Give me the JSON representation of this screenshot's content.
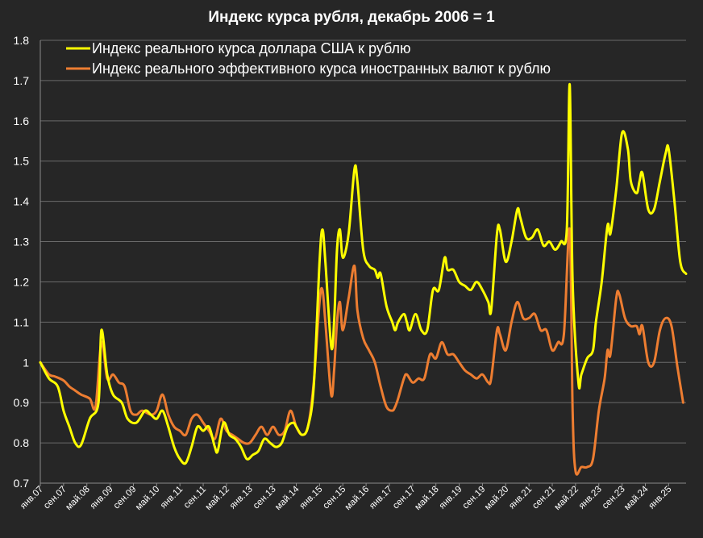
{
  "chart_data": {
    "type": "line",
    "title": "Индекс курса рубля, декабрь 2006 = 1",
    "ylim": [
      0.7,
      1.8
    ],
    "yticks": [
      "0.7",
      "0.8",
      "0.9",
      "1",
      "1.1",
      "1.2",
      "1.3",
      "1.4",
      "1.5",
      "1.6",
      "1.7",
      "1.8"
    ],
    "grid": true,
    "legend_position": "top-left",
    "colors": {
      "background": "#262626",
      "usd": "#ffff00",
      "eff": "#ed7d31",
      "grid": "#6a6a6a",
      "text": "#ffffff"
    },
    "x_ticks": [
      "янв.07",
      "сен.07",
      "май.08",
      "янв.09",
      "сен.09",
      "май.10",
      "янв.11",
      "сен.11",
      "май.12",
      "янв.13",
      "сен.13",
      "май.14",
      "янв.15",
      "сен.15",
      "май.16",
      "янв.17",
      "сен.17",
      "май.18",
      "янв.19",
      "сен.19",
      "май.20",
      "янв.21",
      "сен.21",
      "май.22",
      "янв.23",
      "сен.23",
      "май.24",
      "янв.25"
    ],
    "x_tick_month_index": [
      0,
      8,
      16,
      24,
      32,
      40,
      48,
      56,
      64,
      72,
      80,
      88,
      96,
      104,
      112,
      120,
      128,
      136,
      144,
      152,
      160,
      168,
      176,
      184,
      192,
      200,
      208,
      216
    ],
    "x_start_label": "янв.07",
    "n_months": 223,
    "series": [
      {
        "name": "Индекс реального курса доллара США к рублю",
        "color": "#ffff00",
        "points": [
          [
            0,
            1.0
          ],
          [
            3,
            0.96
          ],
          [
            6,
            0.94
          ],
          [
            8,
            0.88
          ],
          [
            10,
            0.84
          ],
          [
            12,
            0.8
          ],
          [
            14,
            0.795
          ],
          [
            17,
            0.86
          ],
          [
            20,
            0.9
          ],
          [
            21,
            1.08
          ],
          [
            23,
            0.97
          ],
          [
            25,
            0.92
          ],
          [
            28,
            0.9
          ],
          [
            30,
            0.86
          ],
          [
            33,
            0.85
          ],
          [
            36,
            0.88
          ],
          [
            38,
            0.87
          ],
          [
            40,
            0.86
          ],
          [
            42,
            0.88
          ],
          [
            44,
            0.84
          ],
          [
            46,
            0.79
          ],
          [
            48,
            0.76
          ],
          [
            50,
            0.75
          ],
          [
            52,
            0.79
          ],
          [
            54,
            0.84
          ],
          [
            56,
            0.83
          ],
          [
            58,
            0.84
          ],
          [
            60,
            0.79
          ],
          [
            61,
            0.78
          ],
          [
            63,
            0.85
          ],
          [
            65,
            0.82
          ],
          [
            67,
            0.81
          ],
          [
            69,
            0.79
          ],
          [
            71,
            0.76
          ],
          [
            73,
            0.77
          ],
          [
            75,
            0.78
          ],
          [
            77,
            0.81
          ],
          [
            79,
            0.8
          ],
          [
            81,
            0.79
          ],
          [
            83,
            0.8
          ],
          [
            85,
            0.84
          ],
          [
            87,
            0.85
          ],
          [
            88,
            0.84
          ],
          [
            90,
            0.82
          ],
          [
            92,
            0.84
          ],
          [
            94,
            0.94
          ],
          [
            96,
            1.25
          ],
          [
            97,
            1.33
          ],
          [
            98,
            1.25
          ],
          [
            100,
            1.04
          ],
          [
            101,
            1.1
          ],
          [
            102,
            1.28
          ],
          [
            103,
            1.33
          ],
          [
            104,
            1.26
          ],
          [
            106,
            1.32
          ],
          [
            108,
            1.48
          ],
          [
            109,
            1.45
          ],
          [
            111,
            1.28
          ],
          [
            113,
            1.24
          ],
          [
            115,
            1.23
          ],
          [
            116,
            1.21
          ],
          [
            117,
            1.22
          ],
          [
            119,
            1.14
          ],
          [
            121,
            1.1
          ],
          [
            122,
            1.08
          ],
          [
            123,
            1.1
          ],
          [
            125,
            1.12
          ],
          [
            126,
            1.1
          ],
          [
            127,
            1.08
          ],
          [
            129,
            1.12
          ],
          [
            131,
            1.08
          ],
          [
            133,
            1.08
          ],
          [
            135,
            1.18
          ],
          [
            137,
            1.18
          ],
          [
            139,
            1.26
          ],
          [
            140,
            1.23
          ],
          [
            142,
            1.23
          ],
          [
            144,
            1.2
          ],
          [
            146,
            1.19
          ],
          [
            148,
            1.18
          ],
          [
            150,
            1.2
          ],
          [
            152,
            1.18
          ],
          [
            154,
            1.15
          ],
          [
            155,
            1.13
          ],
          [
            157,
            1.32
          ],
          [
            158,
            1.33
          ],
          [
            160,
            1.25
          ],
          [
            162,
            1.3
          ],
          [
            164,
            1.38
          ],
          [
            165,
            1.36
          ],
          [
            167,
            1.31
          ],
          [
            169,
            1.31
          ],
          [
            171,
            1.33
          ],
          [
            173,
            1.29
          ],
          [
            175,
            1.3
          ],
          [
            177,
            1.28
          ],
          [
            179,
            1.3
          ],
          [
            181,
            1.33
          ],
          [
            182,
            1.69
          ],
          [
            183,
            1.2
          ],
          [
            185,
            0.95
          ],
          [
            186,
            0.97
          ],
          [
            188,
            1.01
          ],
          [
            190,
            1.03
          ],
          [
            191,
            1.1
          ],
          [
            193,
            1.2
          ],
          [
            195,
            1.34
          ],
          [
            196,
            1.32
          ],
          [
            198,
            1.43
          ],
          [
            200,
            1.57
          ],
          [
            202,
            1.53
          ],
          [
            203,
            1.45
          ],
          [
            205,
            1.42
          ],
          [
            206,
            1.45
          ],
          [
            207,
            1.47
          ],
          [
            209,
            1.38
          ],
          [
            211,
            1.38
          ],
          [
            213,
            1.45
          ],
          [
            215,
            1.52
          ],
          [
            216,
            1.53
          ],
          [
            218,
            1.4
          ],
          [
            220,
            1.25
          ],
          [
            222,
            1.22
          ]
        ]
      },
      {
        "name": "Индекс реального эффективного курса иностранных валют к рублю",
        "color": "#ed7d31",
        "points": [
          [
            0,
            1.0
          ],
          [
            3,
            0.97
          ],
          [
            5,
            0.965
          ],
          [
            8,
            0.955
          ],
          [
            10,
            0.94
          ],
          [
            12,
            0.93
          ],
          [
            14,
            0.92
          ],
          [
            17,
            0.91
          ],
          [
            19,
            0.89
          ],
          [
            21,
            1.05
          ],
          [
            23,
            0.96
          ],
          [
            25,
            0.97
          ],
          [
            27,
            0.95
          ],
          [
            29,
            0.94
          ],
          [
            31,
            0.88
          ],
          [
            33,
            0.87
          ],
          [
            35,
            0.88
          ],
          [
            38,
            0.87
          ],
          [
            40,
            0.88
          ],
          [
            42,
            0.92
          ],
          [
            44,
            0.87
          ],
          [
            46,
            0.84
          ],
          [
            48,
            0.83
          ],
          [
            50,
            0.82
          ],
          [
            52,
            0.86
          ],
          [
            54,
            0.87
          ],
          [
            56,
            0.85
          ],
          [
            58,
            0.83
          ],
          [
            60,
            0.81
          ],
          [
            62,
            0.86
          ],
          [
            64,
            0.83
          ],
          [
            66,
            0.82
          ],
          [
            68,
            0.81
          ],
          [
            70,
            0.8
          ],
          [
            72,
            0.8
          ],
          [
            74,
            0.82
          ],
          [
            76,
            0.84
          ],
          [
            78,
            0.82
          ],
          [
            80,
            0.84
          ],
          [
            82,
            0.82
          ],
          [
            84,
            0.83
          ],
          [
            86,
            0.88
          ],
          [
            88,
            0.84
          ],
          [
            90,
            0.82
          ],
          [
            92,
            0.84
          ],
          [
            94,
            0.95
          ],
          [
            96,
            1.15
          ],
          [
            97,
            1.18
          ],
          [
            98,
            1.1
          ],
          [
            100,
            0.92
          ],
          [
            101,
            0.98
          ],
          [
            102,
            1.1
          ],
          [
            103,
            1.15
          ],
          [
            104,
            1.08
          ],
          [
            106,
            1.16
          ],
          [
            108,
            1.24
          ],
          [
            109,
            1.13
          ],
          [
            111,
            1.06
          ],
          [
            113,
            1.03
          ],
          [
            115,
            1.0
          ],
          [
            117,
            0.94
          ],
          [
            119,
            0.89
          ],
          [
            121,
            0.88
          ],
          [
            122,
            0.89
          ],
          [
            123,
            0.91
          ],
          [
            125,
            0.96
          ],
          [
            126,
            0.97
          ],
          [
            128,
            0.95
          ],
          [
            130,
            0.96
          ],
          [
            132,
            0.96
          ],
          [
            134,
            1.02
          ],
          [
            136,
            1.01
          ],
          [
            138,
            1.05
          ],
          [
            140,
            1.02
          ],
          [
            142,
            1.02
          ],
          [
            144,
            1.0
          ],
          [
            146,
            0.98
          ],
          [
            148,
            0.97
          ],
          [
            150,
            0.96
          ],
          [
            152,
            0.97
          ],
          [
            154,
            0.95
          ],
          [
            155,
            0.96
          ],
          [
            157,
            1.08
          ],
          [
            158,
            1.07
          ],
          [
            160,
            1.03
          ],
          [
            162,
            1.1
          ],
          [
            164,
            1.15
          ],
          [
            166,
            1.11
          ],
          [
            168,
            1.11
          ],
          [
            170,
            1.12
          ],
          [
            172,
            1.08
          ],
          [
            174,
            1.08
          ],
          [
            176,
            1.03
          ],
          [
            178,
            1.05
          ],
          [
            180,
            1.07
          ],
          [
            182,
            1.33
          ],
          [
            183,
            0.88
          ],
          [
            184,
            0.73
          ],
          [
            186,
            0.74
          ],
          [
            188,
            0.74
          ],
          [
            190,
            0.76
          ],
          [
            192,
            0.88
          ],
          [
            194,
            0.96
          ],
          [
            195,
            1.03
          ],
          [
            196,
            1.02
          ],
          [
            198,
            1.16
          ],
          [
            199,
            1.17
          ],
          [
            201,
            1.11
          ],
          [
            203,
            1.09
          ],
          [
            205,
            1.09
          ],
          [
            206,
            1.07
          ],
          [
            207,
            1.09
          ],
          [
            209,
            1.0
          ],
          [
            211,
            1.0
          ],
          [
            213,
            1.08
          ],
          [
            215,
            1.11
          ],
          [
            217,
            1.09
          ],
          [
            219,
            0.99
          ],
          [
            221,
            0.9
          ]
        ]
      }
    ]
  }
}
